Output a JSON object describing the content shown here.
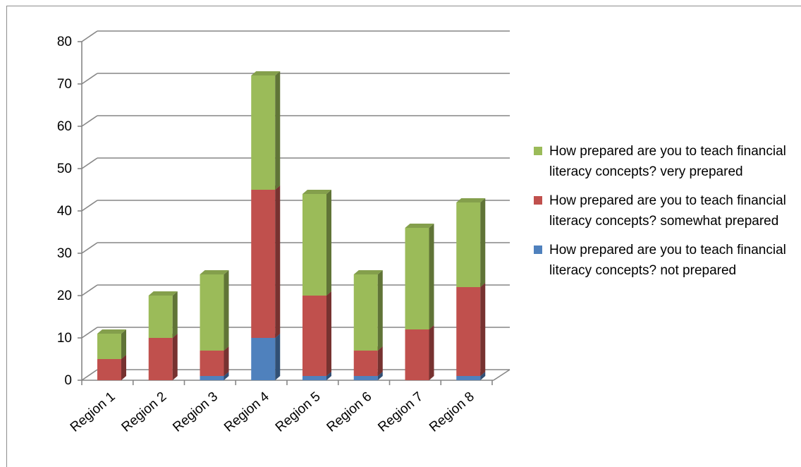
{
  "chart_data": {
    "type": "bar",
    "stacked": true,
    "three_d": true,
    "categories": [
      "Region 1",
      "Region 2",
      "Region 3",
      "Region 4",
      "Region 5",
      "Region 6",
      "Region 7",
      "Region 8"
    ],
    "series": [
      {
        "name": "How prepared are you to teach financial literacy concepts? not prepared",
        "values": [
          0,
          0,
          1,
          10,
          1,
          1,
          0,
          1
        ],
        "color": "#4f81bd"
      },
      {
        "name": "How prepared are you to teach financial literacy concepts? somewhat prepared",
        "values": [
          5,
          10,
          6,
          35,
          19,
          6,
          12,
          21
        ],
        "color": "#c0504d"
      },
      {
        "name": "How prepared are you to teach financial literacy concepts? very prepared",
        "values": [
          6,
          10,
          18,
          27,
          24,
          18,
          24,
          20
        ],
        "color": "#9bbb59"
      }
    ],
    "legend_order": [
      2,
      1,
      0
    ],
    "y_ticks": [
      "0",
      "10",
      "20",
      "30",
      "40",
      "50",
      "60",
      "70",
      "80"
    ],
    "ylim": [
      0,
      80
    ],
    "grid": true,
    "legend_position": "right",
    "title": "",
    "xlabel": "",
    "ylabel": ""
  }
}
